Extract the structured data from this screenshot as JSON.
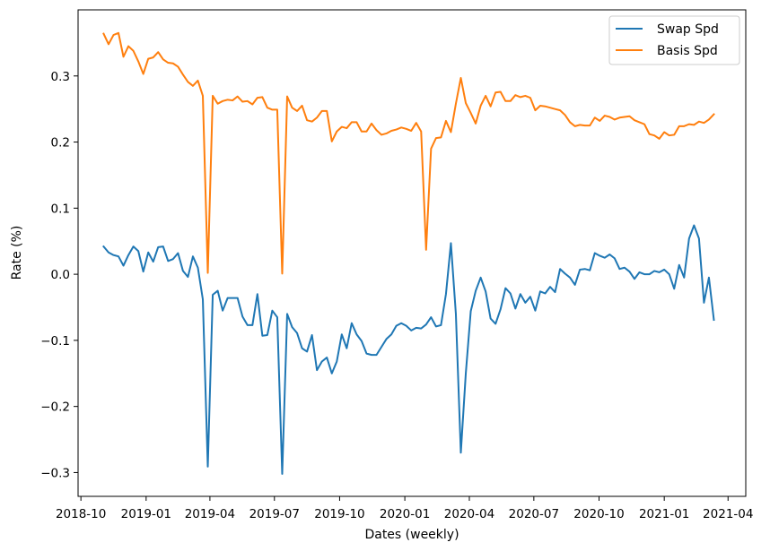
{
  "chart_data": {
    "type": "line",
    "xlabel": "Dates (weekly)",
    "ylabel": "Rate (%)",
    "xlim": [
      "2018-09-27",
      "2021-04-26"
    ],
    "ylim": [
      -0.336,
      0.4
    ],
    "x_ticks": [
      "2018-10",
      "2019-01",
      "2019-04",
      "2019-07",
      "2019-10",
      "2020-01",
      "2020-04",
      "2020-07",
      "2020-10",
      "2021-01",
      "2021-04"
    ],
    "y_ticks": [
      -0.3,
      -0.2,
      -0.1,
      0.0,
      0.1,
      0.2,
      0.3
    ],
    "y_tick_labels": [
      "−0.3",
      "−0.2",
      "−0.1",
      "0.0",
      "0.1",
      "0.2",
      "0.3"
    ],
    "legend_position": "top-right",
    "grid": false,
    "x_start": "2018-11-02",
    "x_step": "weekly",
    "series": [
      {
        "name": "Swap Spd",
        "color": "#1f77b4",
        "values": [
          0.042,
          0.033,
          0.029,
          0.027,
          0.013,
          0.029,
          0.042,
          0.035,
          0.004,
          0.033,
          0.019,
          0.041,
          0.042,
          0.02,
          0.023,
          0.032,
          0.005,
          -0.004,
          0.027,
          0.01,
          -0.038,
          -0.291,
          -0.031,
          -0.025,
          -0.055,
          -0.036,
          -0.036,
          -0.036,
          -0.064,
          -0.077,
          -0.077,
          -0.03,
          -0.093,
          -0.092,
          -0.055,
          -0.065,
          -0.302,
          -0.06,
          -0.08,
          -0.089,
          -0.112,
          -0.117,
          -0.092,
          -0.145,
          -0.132,
          -0.126,
          -0.15,
          -0.132,
          -0.091,
          -0.112,
          -0.074,
          -0.091,
          -0.101,
          -0.12,
          -0.122,
          -0.122,
          -0.11,
          -0.098,
          -0.091,
          -0.078,
          -0.074,
          -0.078,
          -0.085,
          -0.081,
          -0.082,
          -0.076,
          -0.065,
          -0.079,
          -0.077,
          -0.03,
          0.047,
          -0.06,
          -0.27,
          -0.15,
          -0.056,
          -0.025,
          -0.005,
          -0.026,
          -0.067,
          -0.075,
          -0.053,
          -0.021,
          -0.029,
          -0.052,
          -0.03,
          -0.043,
          -0.034,
          -0.055,
          -0.026,
          -0.029,
          -0.019,
          -0.027,
          0.008,
          0.001,
          -0.005,
          -0.016,
          0.007,
          0.008,
          0.006,
          0.032,
          0.028,
          0.025,
          0.03,
          0.024,
          0.008,
          0.01,
          0.004,
          -0.007,
          0.003,
          0.0,
          0.0,
          0.005,
          0.003,
          0.007,
          0.0,
          -0.022,
          0.014,
          -0.005,
          0.054,
          0.074,
          0.054,
          -0.043,
          -0.005,
          -0.069
        ]
      },
      {
        "name": "Basis Spd",
        "color": "#ff7f0e",
        "values": [
          0.364,
          0.348,
          0.362,
          0.365,
          0.329,
          0.345,
          0.338,
          0.322,
          0.303,
          0.326,
          0.328,
          0.336,
          0.325,
          0.32,
          0.319,
          0.314,
          0.302,
          0.291,
          0.285,
          0.293,
          0.27,
          0.002,
          0.27,
          0.258,
          0.262,
          0.264,
          0.263,
          0.269,
          0.261,
          0.262,
          0.257,
          0.267,
          0.268,
          0.252,
          0.249,
          0.249,
          0.001,
          0.269,
          0.252,
          0.247,
          0.255,
          0.233,
          0.231,
          0.237,
          0.247,
          0.247,
          0.201,
          0.216,
          0.223,
          0.221,
          0.23,
          0.23,
          0.216,
          0.216,
          0.228,
          0.218,
          0.211,
          0.213,
          0.217,
          0.219,
          0.222,
          0.22,
          0.217,
          0.229,
          0.216,
          0.037,
          0.19,
          0.206,
          0.207,
          0.232,
          0.215,
          0.258,
          0.297,
          0.259,
          0.244,
          0.228,
          0.255,
          0.27,
          0.254,
          0.275,
          0.276,
          0.262,
          0.262,
          0.271,
          0.268,
          0.27,
          0.267,
          0.248,
          0.255,
          0.254,
          0.252,
          0.25,
          0.248,
          0.241,
          0.23,
          0.224,
          0.226,
          0.225,
          0.225,
          0.237,
          0.232,
          0.24,
          0.238,
          0.234,
          0.237,
          0.238,
          0.239,
          0.233,
          0.23,
          0.227,
          0.212,
          0.21,
          0.205,
          0.215,
          0.21,
          0.211,
          0.224,
          0.224,
          0.227,
          0.226,
          0.231,
          0.229,
          0.234,
          0.242
        ]
      }
    ]
  }
}
